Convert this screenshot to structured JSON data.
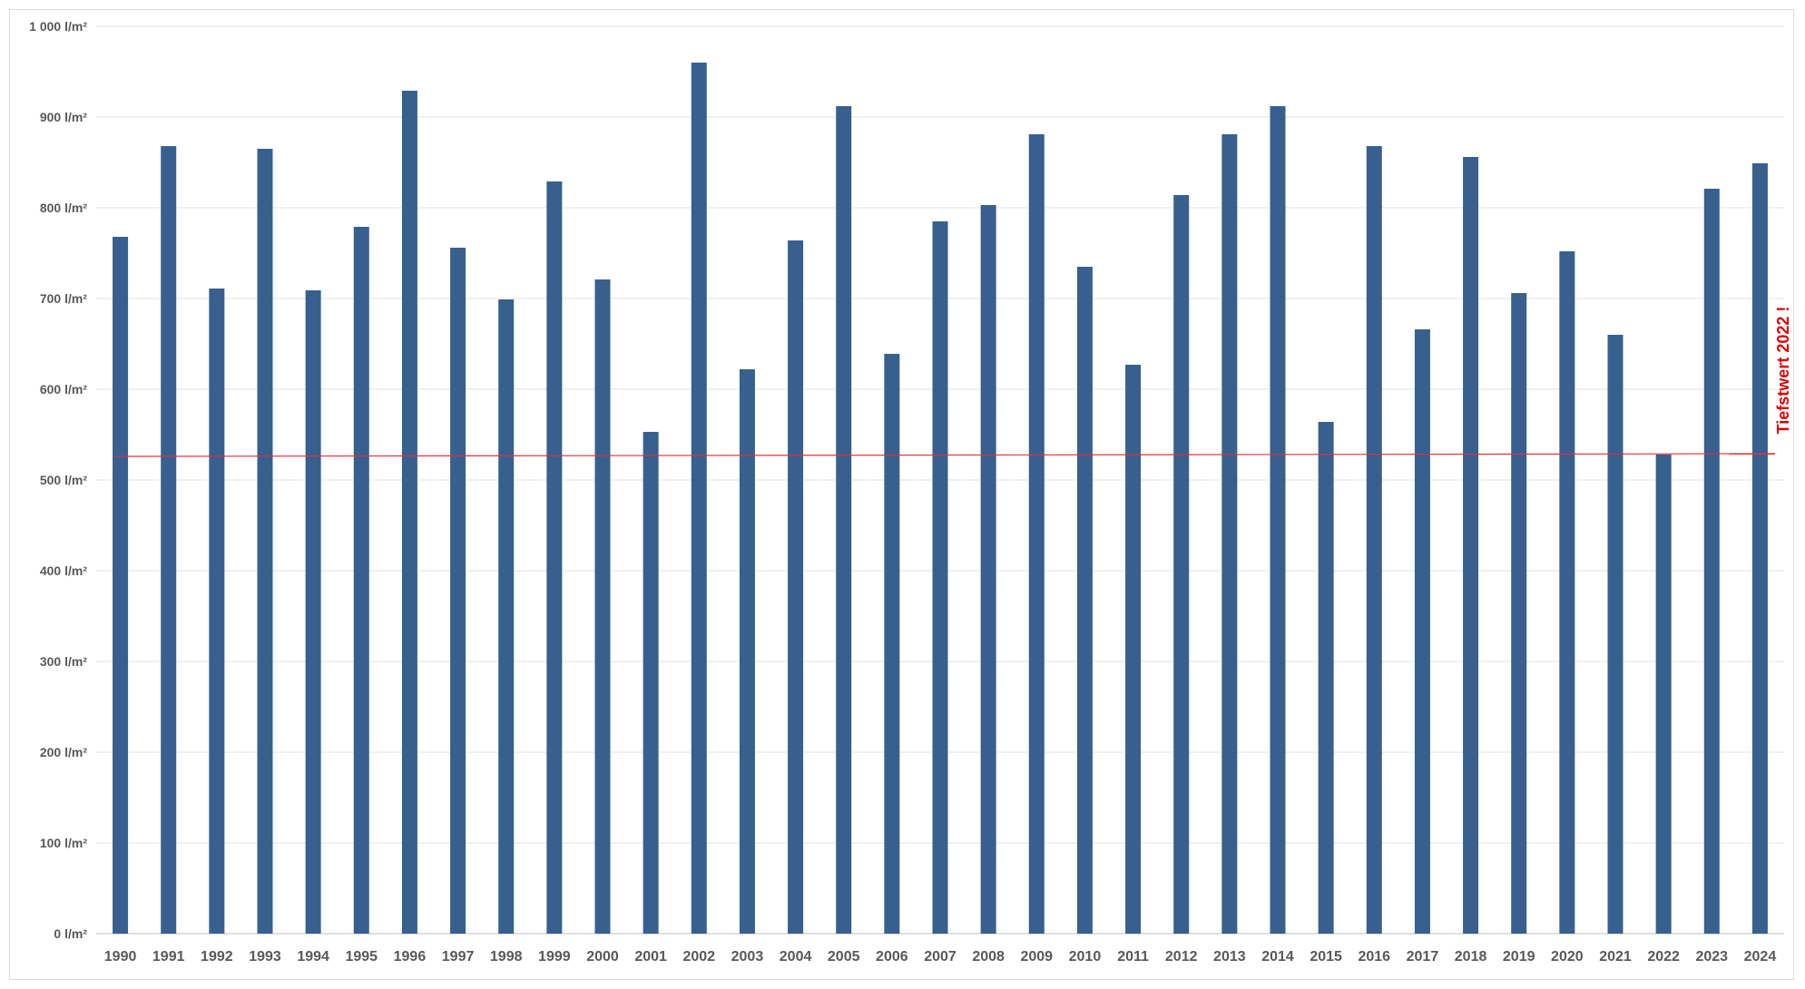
{
  "chart_data": {
    "type": "bar",
    "categories": [
      "1990",
      "1991",
      "1992",
      "1993",
      "1994",
      "1995",
      "1996",
      "1997",
      "1998",
      "1999",
      "2000",
      "2001",
      "2002",
      "2003",
      "2004",
      "2005",
      "2006",
      "2007",
      "2008",
      "2009",
      "2010",
      "2011",
      "2012",
      "2013",
      "2014",
      "2015",
      "2016",
      "2017",
      "2018",
      "2019",
      "2020",
      "2021",
      "2022",
      "2023",
      "2024"
    ],
    "series": [
      {
        "values": [
          768,
          868,
          711,
          865,
          709,
          779,
          929,
          756,
          699,
          829,
          721,
          553,
          960,
          622,
          764,
          912,
          639,
          785,
          803,
          881,
          735,
          627,
          814,
          881,
          912,
          564,
          868,
          666,
          856,
          706,
          752,
          660,
          528,
          821,
          849
        ]
      }
    ],
    "yticks": [
      "0 l/m²",
      "100 l/m²",
      "200 l/m²",
      "300 l/m²",
      "400 l/m²",
      "500 l/m²",
      "600 l/m²",
      "700 l/m²",
      "800 l/m²",
      "900 l/m²",
      "1 000 l/m²"
    ],
    "ylim": [
      0,
      1000
    ],
    "reference_line": {
      "value": 528,
      "color": "#e0303a"
    },
    "annotation": {
      "text": "Tiefstwert 2022 !",
      "color": "#e00000"
    },
    "title": "",
    "xlabel": "",
    "ylabel": "",
    "grid": true,
    "bar_color": "#37608f"
  }
}
